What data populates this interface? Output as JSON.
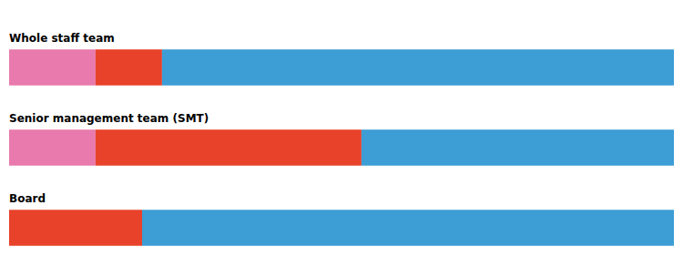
{
  "chart_data": {
    "type": "bar",
    "orientation": "horizontal",
    "stacked": true,
    "categories": [
      "Whole staff team",
      "Senior management team (SMT)",
      "Board"
    ],
    "series": [
      {
        "color": "#e87aad",
        "values": [
          13,
          13,
          0
        ]
      },
      {
        "color": "#e8422a",
        "values": [
          10,
          40,
          20
        ]
      },
      {
        "color": "#3d9dd5",
        "values": [
          77,
          47,
          80
        ]
      }
    ],
    "xlim": [
      0,
      100
    ],
    "tick_labels": false,
    "grid": false
  }
}
